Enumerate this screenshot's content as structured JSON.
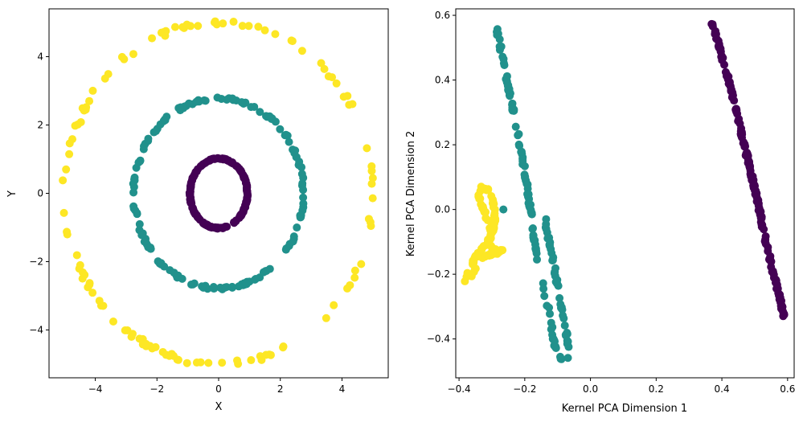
{
  "colors": {
    "class_0": "#440154",
    "class_1": "#21918c",
    "class_2": "#fde725",
    "axes": "#000000",
    "background": "#ffffff"
  },
  "chart_data": [
    {
      "type": "scatter",
      "title": "",
      "xlabel": "X",
      "ylabel": "Y",
      "xlim": [
        -5.5,
        5.5
      ],
      "ylim": [
        -5.4,
        5.4
      ],
      "xticks": [
        -4,
        -2,
        0,
        2,
        4
      ],
      "yticks": [
        -4,
        -2,
        0,
        2,
        4
      ],
      "xtick_labels": [
        "−4",
        "−2",
        "0",
        "2",
        "4"
      ],
      "ytick_labels": [
        "−4",
        "−2",
        "0",
        "2",
        "4"
      ],
      "grid": false,
      "legend": "none",
      "series": [
        {
          "color_key": "class_2",
          "shape": "ring",
          "radius_x": 5.0,
          "radius_y": 5.0,
          "count": 120
        },
        {
          "color_key": "class_1",
          "shape": "ring",
          "radius_x": 2.75,
          "radius_y": 2.78,
          "count": 150
        },
        {
          "color_key": "class_0",
          "shape": "ring",
          "radius_x": 0.93,
          "radius_y": 1.02,
          "count": 200
        }
      ]
    },
    {
      "type": "scatter",
      "title": "",
      "xlabel": "Kernel PCA Dimension 1",
      "ylabel": "Kernel PCA Dimension 2",
      "xlim": [
        -0.41,
        0.62
      ],
      "ylim": [
        -0.52,
        0.62
      ],
      "xticks": [
        -0.4,
        -0.2,
        0.0,
        0.2,
        0.4,
        0.6
      ],
      "yticks": [
        -0.4,
        -0.2,
        0.0,
        0.2,
        0.4,
        0.6
      ],
      "xtick_labels": [
        "−0.4",
        "−0.2",
        "0.0",
        "0.2",
        "0.4",
        "0.6"
      ],
      "ytick_labels": [
        "−0.4",
        "−0.2",
        "0.0",
        "0.2",
        "0.4",
        "0.6"
      ],
      "grid": false,
      "legend": "none",
      "series": [
        {
          "color_key": "class_0",
          "shape": "line",
          "points": [
            [
              0.37,
              0.575
            ],
            [
              0.39,
              0.51
            ],
            [
              0.42,
              0.4
            ],
            [
              0.45,
              0.28
            ],
            [
              0.48,
              0.15
            ],
            [
              0.51,
              0.02
            ],
            [
              0.53,
              -0.08
            ],
            [
              0.55,
              -0.17
            ],
            [
              0.57,
              -0.25
            ],
            [
              0.585,
              -0.31
            ],
            [
              0.595,
              -0.355
            ]
          ],
          "count": 180
        },
        {
          "color_key": "class_1",
          "shape": "path",
          "points": [
            [
              -0.285,
              0.56
            ],
            [
              -0.27,
              0.48
            ],
            [
              -0.25,
              0.38
            ],
            [
              -0.23,
              0.28
            ],
            [
              -0.215,
              0.2
            ],
            [
              -0.2,
              0.12
            ],
            [
              -0.19,
              0.05
            ],
            [
              -0.18,
              -0.02
            ],
            [
              -0.17,
              -0.1
            ],
            [
              -0.155,
              -0.18
            ],
            [
              -0.14,
              -0.26
            ],
            [
              -0.125,
              -0.32
            ],
            [
              -0.115,
              -0.38
            ],
            [
              -0.11,
              -0.42
            ],
            [
              -0.09,
              -0.46
            ],
            [
              -0.07,
              -0.465
            ],
            [
              -0.065,
              -0.44
            ],
            [
              -0.07,
              -0.4
            ],
            [
              -0.08,
              -0.35
            ],
            [
              -0.09,
              -0.3
            ],
            [
              -0.1,
              -0.24
            ],
            [
              -0.11,
              -0.18
            ],
            [
              -0.125,
              -0.1
            ],
            [
              -0.14,
              -0.04
            ]
          ],
          "extra_points": [
            [
              -0.265,
              0.0
            ],
            [
              -0.135,
              -0.03
            ]
          ],
          "count": 150
        },
        {
          "color_key": "class_2",
          "shape": "path",
          "points": [
            [
              -0.38,
              -0.22
            ],
            [
              -0.37,
              -0.19
            ],
            [
              -0.355,
              -0.16
            ],
            [
              -0.345,
              -0.14
            ],
            [
              -0.33,
              -0.12
            ],
            [
              -0.31,
              -0.1
            ],
            [
              -0.3,
              -0.08
            ],
            [
              -0.305,
              -0.05
            ],
            [
              -0.318,
              -0.02
            ],
            [
              -0.33,
              0.01
            ],
            [
              -0.34,
              0.04
            ],
            [
              -0.33,
              0.07
            ],
            [
              -0.31,
              0.06
            ],
            [
              -0.295,
              0.02
            ],
            [
              -0.29,
              -0.02
            ],
            [
              -0.295,
              -0.06
            ],
            [
              -0.31,
              -0.095
            ],
            [
              -0.3,
              -0.12
            ],
            [
              -0.28,
              -0.13
            ],
            [
              -0.265,
              -0.125
            ],
            [
              -0.285,
              -0.135
            ],
            [
              -0.31,
              -0.14
            ],
            [
              -0.33,
              -0.15
            ],
            [
              -0.345,
              -0.17
            ],
            [
              -0.355,
              -0.19
            ],
            [
              -0.365,
              -0.21
            ]
          ],
          "count": 130
        }
      ]
    }
  ]
}
